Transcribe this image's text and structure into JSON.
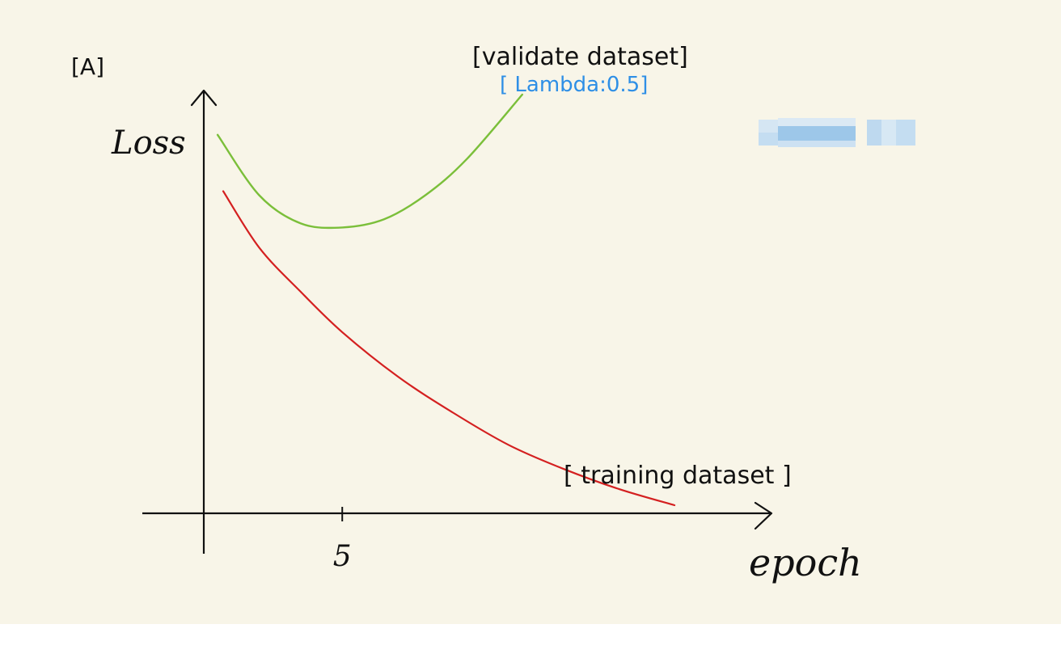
{
  "panel_label": "[A]",
  "chart_data": {
    "type": "line",
    "xlabel": "epoch",
    "ylabel": "Loss",
    "x_ticks": [
      "5"
    ],
    "series": [
      {
        "name": "[validate dataset]",
        "annotation": "[ Lambda:0.5]",
        "color": "#7bbf3a",
        "x": [
          0.5,
          2,
          3.5,
          5,
          6.5,
          8,
          9.5,
          11.5
        ],
        "y": [
          0.94,
          0.79,
          0.72,
          0.71,
          0.73,
          0.79,
          0.88,
          1.04
        ]
      },
      {
        "name": "[ training dataset ]",
        "color": "#d42020",
        "x": [
          0.7,
          2,
          3.5,
          5,
          7,
          9,
          11,
          13,
          15,
          17
        ],
        "y": [
          0.8,
          0.66,
          0.55,
          0.45,
          0.34,
          0.25,
          0.17,
          0.11,
          0.06,
          0.02
        ]
      }
    ],
    "xlim": [
      0,
      20.5
    ],
    "ylim": [
      0,
      1.05
    ],
    "grid": false,
    "legend": "none"
  },
  "colors": {
    "background": "#f8f5e8",
    "axis": "#111111",
    "annotation": "#2e8fe6",
    "redaction": "#a9d0f0"
  }
}
